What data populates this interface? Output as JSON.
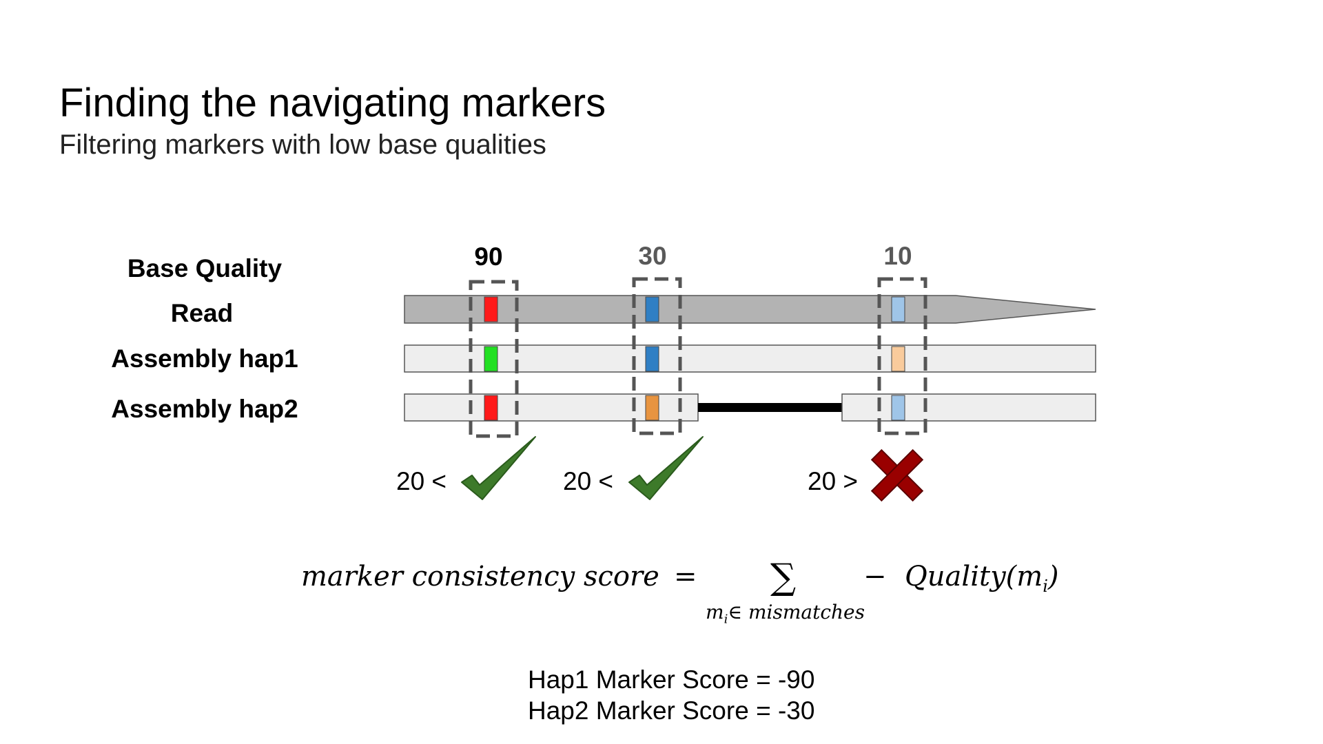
{
  "slide": {
    "title": "Finding the navigating markers",
    "subtitle": "Filtering markers with low base qualities"
  },
  "diagram": {
    "row_labels": {
      "base_quality": "Base Quality",
      "read": "Read",
      "hap1": "Assembly hap1",
      "hap2": "Assembly hap2"
    },
    "markers": [
      {
        "quality": "90",
        "quality_color": "#000000",
        "read_color": "#ff1a1a",
        "hap1_color": "#22e022",
        "hap2_color": "#ff1a1a",
        "comparison": "20 <",
        "result": "pass"
      },
      {
        "quality": "30",
        "quality_color": "#595959",
        "read_color": "#2f7fc4",
        "hap1_color": "#2f7fc4",
        "hap2_color": "#e89440",
        "comparison": "20 <",
        "result": "pass"
      },
      {
        "quality": "10",
        "quality_color": "#595959",
        "read_color": "#9fc5e8",
        "hap1_color": "#f9cb9c",
        "hap2_color": "#9fc5e8",
        "comparison": "20 >",
        "result": "fail"
      }
    ],
    "colors": {
      "read_bar": "#b3b3b3",
      "assembly_bar": "#eeeeee",
      "check": "#3d7a2a",
      "cross": "#990000",
      "gap": "#000000"
    }
  },
  "formula": {
    "lhs": "marker consistency score",
    "equals": "=",
    "sum_symbol": "∑",
    "subscript_var": "m",
    "subscript_index": "i",
    "subscript_rest": "∈ mismatches",
    "minus": "−",
    "term": "Quality(m",
    "term_index": "i",
    "term_close": ")"
  },
  "scores": {
    "hap1": "Hap1 Marker Score = -90",
    "hap2": "Hap2 Marker Score = -30"
  }
}
